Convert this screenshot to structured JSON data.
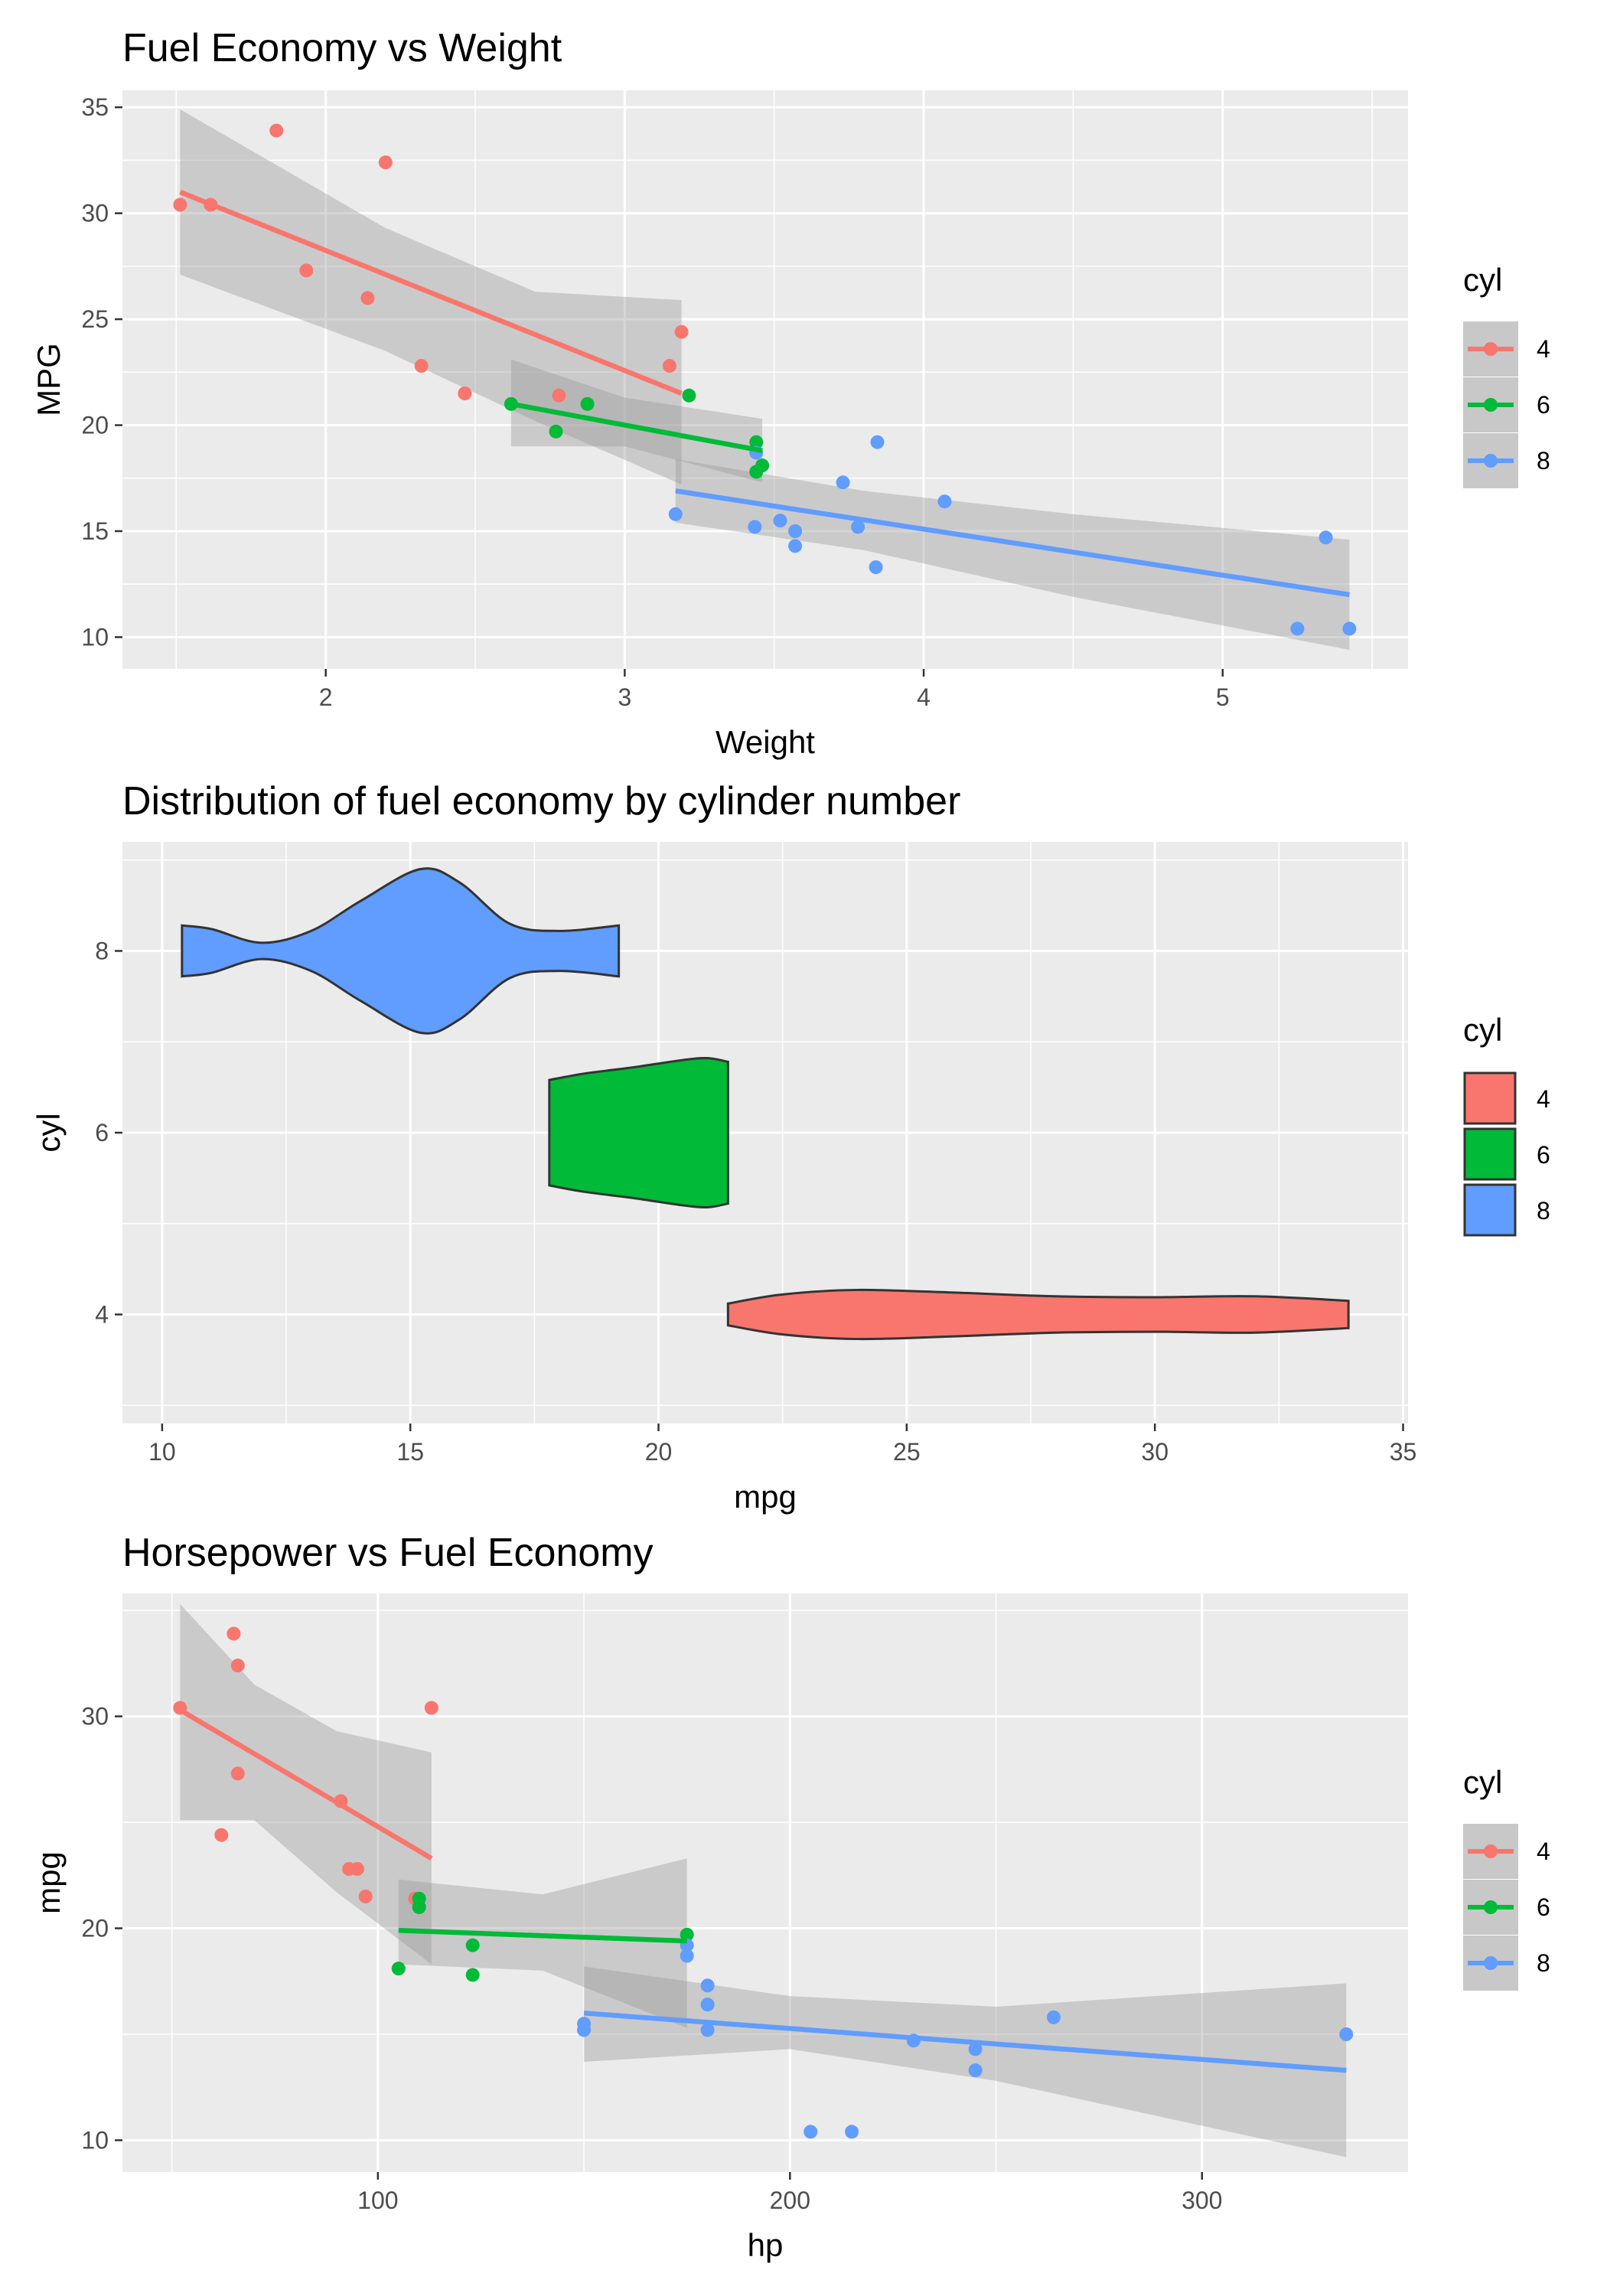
{
  "chart_data": [
    {
      "type": "scatter",
      "title": "Fuel Economy vs Weight",
      "xlabel": "Weight",
      "ylabel": "MPG",
      "xlim": [
        1.32,
        5.62
      ],
      "ylim": [
        8.5,
        35.8
      ],
      "xticks": [
        2,
        3,
        4,
        5
      ],
      "yticks": [
        10,
        15,
        20,
        25,
        30,
        35
      ],
      "grid": true,
      "legend": {
        "title": "cyl",
        "position": "right",
        "labels": [
          "4",
          "6",
          "8"
        ],
        "key": "line-point"
      },
      "colors": {
        "4": "#F8766D",
        "6": "#00BA38",
        "8": "#619CFF",
        "panel": "#EBEBEB",
        "band": "#999999"
      },
      "series": [
        {
          "name": "4",
          "points": [
            [
              2.32,
              22.8
            ],
            [
              3.19,
              24.4
            ],
            [
              3.15,
              22.8
            ],
            [
              2.2,
              32.4
            ],
            [
              1.615,
              30.4
            ],
            [
              1.835,
              33.9
            ],
            [
              2.465,
              21.5
            ],
            [
              1.935,
              27.3
            ],
            [
              2.14,
              26.0
            ],
            [
              1.513,
              30.4
            ],
            [
              2.78,
              21.4
            ]
          ],
          "fit": [
            [
              1.513,
              31.0
            ],
            [
              3.19,
              21.5
            ]
          ],
          "band": [
            [
              1.513,
              34.9
            ],
            [
              2.2,
              29.3
            ],
            [
              2.7,
              26.3
            ],
            [
              3.19,
              25.9
            ],
            [
              3.19,
              17.2
            ],
            [
              2.7,
              20.2
            ],
            [
              2.2,
              23.5
            ],
            [
              1.513,
              27.1
            ]
          ]
        },
        {
          "name": "6",
          "points": [
            [
              2.62,
              21.0
            ],
            [
              2.875,
              21.0
            ],
            [
              3.215,
              21.4
            ],
            [
              3.46,
              18.1
            ],
            [
              3.44,
              19.2
            ],
            [
              3.44,
              17.8
            ],
            [
              2.77,
              19.7
            ]
          ],
          "fit": [
            [
              2.62,
              21.0
            ],
            [
              3.46,
              18.8
            ]
          ],
          "band": [
            [
              2.62,
              23.1
            ],
            [
              3.0,
              21.3
            ],
            [
              3.46,
              20.3
            ],
            [
              3.46,
              17.3
            ],
            [
              3.0,
              19.0
            ],
            [
              2.62,
              19.0
            ]
          ]
        },
        {
          "name": "8",
          "points": [
            [
              3.44,
              18.7
            ],
            [
              3.57,
              14.3
            ],
            [
              4.07,
              16.4
            ],
            [
              3.73,
              17.3
            ],
            [
              3.78,
              15.2
            ],
            [
              5.25,
              10.4
            ],
            [
              5.424,
              10.4
            ],
            [
              5.345,
              14.7
            ],
            [
              3.52,
              15.5
            ],
            [
              3.435,
              15.2
            ],
            [
              3.84,
              13.3
            ],
            [
              3.845,
              19.2
            ],
            [
              3.17,
              15.8
            ],
            [
              3.57,
              15.0
            ]
          ],
          "fit": [
            [
              3.17,
              16.9
            ],
            [
              5.424,
              12.0
            ]
          ],
          "band": [
            [
              3.17,
              18.4
            ],
            [
              3.8,
              16.9
            ],
            [
              4.5,
              15.8
            ],
            [
              5.424,
              14.6
            ],
            [
              5.424,
              9.4
            ],
            [
              4.5,
              11.9
            ],
            [
              3.8,
              14.1
            ],
            [
              3.17,
              15.4
            ]
          ]
        }
      ]
    },
    {
      "type": "violin",
      "title": "Distribution of fuel economy by cylinder number",
      "xlabel": "mpg",
      "ylabel": "cyl",
      "xlim": [
        9.2,
        35.1
      ],
      "ylim": [
        2.8,
        9.2
      ],
      "xticks": [
        10,
        15,
        20,
        25,
        30,
        35
      ],
      "yticks": [
        4,
        6,
        8
      ],
      "grid": true,
      "legend": {
        "title": "cyl",
        "position": "right",
        "labels": [
          "4",
          "6",
          "8"
        ],
        "key": "fill"
      },
      "colors": {
        "4": "#F8766D",
        "6": "#00BA38",
        "8": "#619CFF",
        "panel": "#EBEBEB",
        "outline": "#333333"
      },
      "series": [
        {
          "name": "8",
          "center": 8,
          "profile": [
            [
              10.4,
              0.28
            ],
            [
              11.0,
              0.24
            ],
            [
              12.0,
              0.09
            ],
            [
              13.0,
              0.22
            ],
            [
              14.0,
              0.55
            ],
            [
              15.2,
              0.9
            ],
            [
              16.0,
              0.75
            ],
            [
              17.0,
              0.3
            ],
            [
              18.0,
              0.22
            ],
            [
              19.2,
              0.28
            ]
          ]
        },
        {
          "name": "6",
          "center": 6,
          "profile": [
            [
              17.8,
              0.58
            ],
            [
              18.5,
              0.65
            ],
            [
              19.5,
              0.72
            ],
            [
              20.5,
              0.8
            ],
            [
              21.0,
              0.82
            ],
            [
              21.4,
              0.78
            ]
          ]
        },
        {
          "name": "4",
          "center": 4,
          "profile": [
            [
              21.4,
              0.12
            ],
            [
              22.5,
              0.22
            ],
            [
              24.0,
              0.27
            ],
            [
              26.0,
              0.24
            ],
            [
              28.0,
              0.2
            ],
            [
              30.0,
              0.19
            ],
            [
              32.0,
              0.2
            ],
            [
              33.9,
              0.15
            ]
          ]
        }
      ]
    },
    {
      "type": "scatter",
      "title": "Horsepower vs Fuel Economy",
      "xlabel": "hp",
      "ylabel": "mpg",
      "xlim": [
        38,
        350
      ],
      "ylim": [
        8.5,
        35.8
      ],
      "xticks": [
        100,
        200,
        300
      ],
      "yticks": [
        10,
        20,
        30
      ],
      "grid": true,
      "legend": {
        "title": "cyl",
        "position": "right",
        "labels": [
          "4",
          "6",
          "8"
        ],
        "key": "line-point"
      },
      "colors": {
        "4": "#F8766D",
        "6": "#00BA38",
        "8": "#619CFF",
        "panel": "#EBEBEB",
        "band": "#999999"
      },
      "series": [
        {
          "name": "4",
          "points": [
            [
              93,
              22.8
            ],
            [
              62,
              24.4
            ],
            [
              95,
              22.8
            ],
            [
              66,
              32.4
            ],
            [
              52,
              30.4
            ],
            [
              65,
              33.9
            ],
            [
              97,
              21.5
            ],
            [
              66,
              27.3
            ],
            [
              91,
              26.0
            ],
            [
              113,
              30.4
            ],
            [
              109,
              21.4
            ]
          ],
          "fit": [
            [
              52,
              30.3
            ],
            [
              113,
              23.3
            ]
          ],
          "band": [
            [
              52,
              35.3
            ],
            [
              70,
              31.5
            ],
            [
              90,
              29.3
            ],
            [
              113,
              28.3
            ],
            [
              113,
              18.3
            ],
            [
              90,
              21.7
            ],
            [
              70,
              25.1
            ],
            [
              52,
              25.1
            ]
          ]
        },
        {
          "name": "6",
          "points": [
            [
              110,
              21.0
            ],
            [
              110,
              21.0
            ],
            [
              110,
              21.4
            ],
            [
              105,
              18.1
            ],
            [
              123,
              19.2
            ],
            [
              123,
              17.8
            ],
            [
              175,
              19.7
            ]
          ],
          "fit": [
            [
              105,
              19.9
            ],
            [
              175,
              19.4
            ]
          ],
          "band": [
            [
              105,
              22.3
            ],
            [
              140,
              21.6
            ],
            [
              175,
              23.3
            ],
            [
              175,
              15.3
            ],
            [
              140,
              18.0
            ],
            [
              105,
              18.3
            ]
          ]
        },
        {
          "name": "8",
          "points": [
            [
              175,
              18.7
            ],
            [
              245,
              14.3
            ],
            [
              180,
              16.4
            ],
            [
              180,
              17.3
            ],
            [
              180,
              15.2
            ],
            [
              205,
              10.4
            ],
            [
              215,
              10.4
            ],
            [
              230,
              14.7
            ],
            [
              150,
              15.5
            ],
            [
              150,
              15.2
            ],
            [
              245,
              13.3
            ],
            [
              175,
              19.2
            ],
            [
              264,
              15.8
            ],
            [
              335,
              15.0
            ]
          ],
          "fit": [
            [
              150,
              16.0
            ],
            [
              335,
              13.3
            ]
          ],
          "band": [
            [
              150,
              18.2
            ],
            [
              200,
              16.8
            ],
            [
              250,
              16.3
            ],
            [
              335,
              17.4
            ],
            [
              335,
              9.2
            ],
            [
              250,
              12.8
            ],
            [
              200,
              14.3
            ],
            [
              150,
              13.7
            ]
          ]
        }
      ]
    }
  ]
}
